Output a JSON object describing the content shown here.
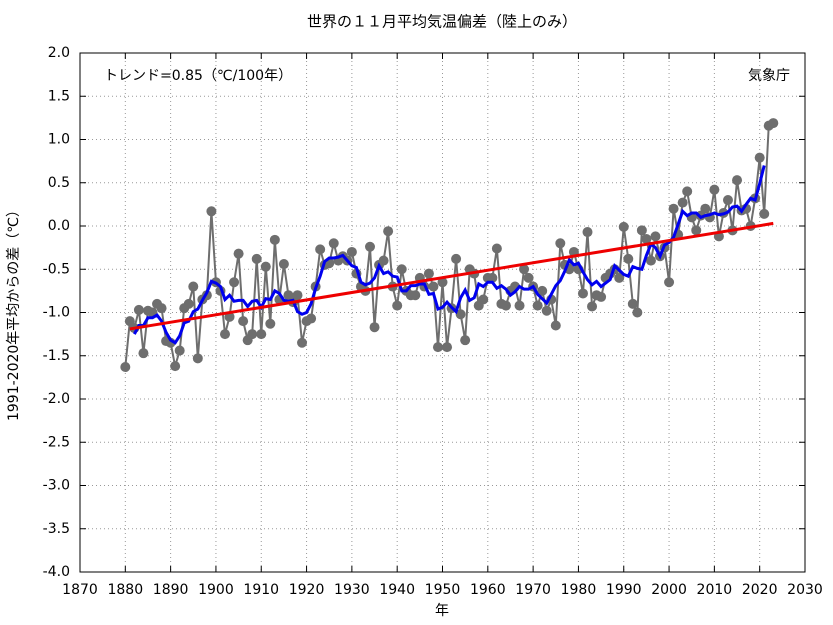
{
  "chart_data": {
    "type": "line",
    "title": "世界の１１月平均気温偏差（陸上のみ）",
    "x_label": "年",
    "y_label": "1991-2020年平均からの差（℃）",
    "annotations": [
      "トレンド=0.85（℃/100年）",
      "気象庁"
    ],
    "x": [
      1880,
      1881,
      1882,
      1883,
      1884,
      1885,
      1886,
      1887,
      1888,
      1889,
      1890,
      1891,
      1892,
      1893,
      1894,
      1895,
      1896,
      1897,
      1898,
      1899,
      1900,
      1901,
      1902,
      1903,
      1904,
      1905,
      1906,
      1907,
      1908,
      1909,
      1910,
      1911,
      1912,
      1913,
      1914,
      1915,
      1916,
      1917,
      1918,
      1919,
      1920,
      1921,
      1922,
      1923,
      1924,
      1925,
      1926,
      1927,
      1928,
      1929,
      1930,
      1931,
      1932,
      1933,
      1934,
      1935,
      1936,
      1937,
      1938,
      1939,
      1940,
      1941,
      1942,
      1943,
      1944,
      1945,
      1946,
      1947,
      1948,
      1949,
      1950,
      1951,
      1952,
      1953,
      1954,
      1955,
      1956,
      1957,
      1958,
      1959,
      1960,
      1961,
      1962,
      1963,
      1964,
      1965,
      1966,
      1967,
      1968,
      1969,
      1970,
      1971,
      1972,
      1973,
      1974,
      1975,
      1976,
      1977,
      1978,
      1979,
      1980,
      1981,
      1982,
      1983,
      1984,
      1985,
      1986,
      1987,
      1988,
      1989,
      1990,
      1991,
      1992,
      1993,
      1994,
      1995,
      1996,
      1997,
      1998,
      1999,
      2000,
      2001,
      2002,
      2003,
      2004,
      2005,
      2006,
      2007,
      2008,
      2009,
      2010,
      2011,
      2012,
      2013,
      2014,
      2015,
      2016,
      2017,
      2018,
      2019,
      2020,
      2021,
      2022,
      2023
    ],
    "series": [
      {
        "color": "#6e6e6e",
        "markers": true,
        "values": [
          -1.63,
          -1.1,
          -1.18,
          -0.97,
          -1.47,
          -0.98,
          -1.0,
          -0.9,
          -0.95,
          -1.33,
          -1.35,
          -1.62,
          -1.44,
          -0.95,
          -0.9,
          -0.7,
          -1.53,
          -0.85,
          -0.8,
          0.17,
          -0.65,
          -0.75,
          -1.25,
          -1.05,
          -0.65,
          -0.32,
          -1.1,
          -1.32,
          -1.25,
          -0.38,
          -1.25,
          -0.47,
          -1.13,
          -0.16,
          -0.85,
          -0.44,
          -0.8,
          -0.88,
          -0.8,
          -1.35,
          -1.1,
          -1.07,
          -0.7,
          -0.27,
          -0.45,
          -0.43,
          -0.2,
          -0.4,
          -0.35,
          -0.4,
          -0.3,
          -0.55,
          -0.7,
          -0.75,
          -0.24,
          -1.17,
          -0.45,
          -0.4,
          -0.06,
          -0.7,
          -0.92,
          -0.5,
          -0.75,
          -0.8,
          -0.8,
          -0.6,
          -0.7,
          -0.55,
          -0.7,
          -1.4,
          -0.65,
          -1.4,
          -0.95,
          -0.38,
          -1.02,
          -1.32,
          -0.5,
          -0.55,
          -0.92,
          -0.85,
          -0.6,
          -0.6,
          -0.26,
          -0.9,
          -0.92,
          -0.75,
          -0.7,
          -0.92,
          -0.5,
          -0.6,
          -0.7,
          -0.92,
          -0.75,
          -0.98,
          -0.85,
          -1.15,
          -0.2,
          -0.45,
          -0.5,
          -0.3,
          -0.5,
          -0.78,
          -0.07,
          -0.93,
          -0.8,
          -0.82,
          -0.6,
          -0.55,
          -0.5,
          -0.6,
          -0.01,
          -0.38,
          -0.9,
          -1.0,
          -0.05,
          -0.15,
          -0.4,
          -0.12,
          -0.35,
          -0.25,
          -0.65,
          0.2,
          -0.1,
          0.27,
          0.4,
          0.1,
          -0.05,
          0.12,
          0.2,
          0.1,
          0.42,
          -0.12,
          0.15,
          0.3,
          -0.05,
          0.53,
          0.18,
          0.2,
          0.0,
          0.32,
          0.79,
          0.14,
          1.16,
          1.19
        ]
      },
      {
        "color": "#0000ee",
        "markers": false,
        "values": [
          null,
          null,
          -1.25,
          -1.15,
          -1.15,
          -1.06,
          -1.06,
          -1.03,
          -1.1,
          -1.23,
          -1.32,
          -1.35,
          -1.27,
          -1.12,
          -1.1,
          -0.99,
          -0.96,
          -0.86,
          -0.77,
          -0.64,
          -0.66,
          -0.7,
          -0.85,
          -0.8,
          -0.87,
          -0.86,
          -0.86,
          -0.93,
          -0.87,
          -0.86,
          -0.94,
          -0.84,
          -0.85,
          -0.75,
          -0.78,
          -0.86,
          -0.87,
          -0.86,
          -0.99,
          -1.02,
          -1.0,
          -0.9,
          -0.72,
          -0.58,
          -0.41,
          -0.37,
          -0.37,
          -0.36,
          -0.34,
          -0.4,
          -0.46,
          -0.48,
          -0.65,
          -0.68,
          -0.66,
          -0.6,
          -0.46,
          -0.55,
          -0.53,
          -0.58,
          -0.59,
          -0.75,
          -0.75,
          -0.69,
          -0.69,
          -0.67,
          -0.67,
          -0.79,
          -0.78,
          -0.96,
          -0.94,
          -0.88,
          -0.94,
          -0.99,
          -0.83,
          -0.74,
          -0.86,
          -0.83,
          -0.67,
          -0.7,
          -0.65,
          -0.65,
          -0.72,
          -0.69,
          -0.73,
          -0.8,
          -0.76,
          -0.7,
          -0.73,
          -0.73,
          -0.7,
          -0.79,
          -0.84,
          -0.89,
          -0.79,
          -0.69,
          -0.63,
          -0.52,
          -0.39,
          -0.45,
          -0.43,
          -0.53,
          -0.62,
          -0.68,
          -0.64,
          -0.7,
          -0.66,
          -0.62,
          -0.46,
          -0.51,
          -0.56,
          -0.58,
          -0.47,
          -0.49,
          -0.5,
          -0.34,
          -0.21,
          -0.25,
          -0.35,
          -0.22,
          -0.19,
          -0.13,
          0.02,
          0.17,
          0.12,
          0.15,
          0.15,
          0.1,
          0.12,
          0.13,
          0.15,
          0.13,
          0.14,
          0.16,
          0.22,
          0.23,
          0.17,
          0.25,
          0.32,
          0.3,
          0.49,
          0.7,
          null,
          null
        ]
      },
      {
        "color": "#ee0000",
        "markers": false,
        "x": [
          1881,
          2023
        ],
        "values": [
          -1.19,
          0.03
        ]
      }
    ],
    "xlim": [
      1870,
      2030
    ],
    "xticks": [
      1870,
      1880,
      1890,
      1900,
      1910,
      1920,
      1930,
      1940,
      1950,
      1960,
      1970,
      1980,
      1990,
      2000,
      2010,
      2020,
      2030
    ],
    "ylim": [
      -4.0,
      2.0
    ],
    "yticks": [
      {
        "value": 2,
        "label": "2.0"
      },
      1.5,
      {
        "value": 1,
        "label": "1.0"
      },
      0.5,
      {
        "value": 0,
        "label": "0.0"
      },
      -0.5,
      {
        "value": -1,
        "label": "-1.0"
      },
      -1.5,
      {
        "value": -2,
        "label": "-2.0"
      },
      -2.5,
      {
        "value": -3,
        "label": "-3.0"
      },
      -3.5,
      {
        "value": -4,
        "label": "-4.0"
      }
    ],
    "grid": true
  }
}
